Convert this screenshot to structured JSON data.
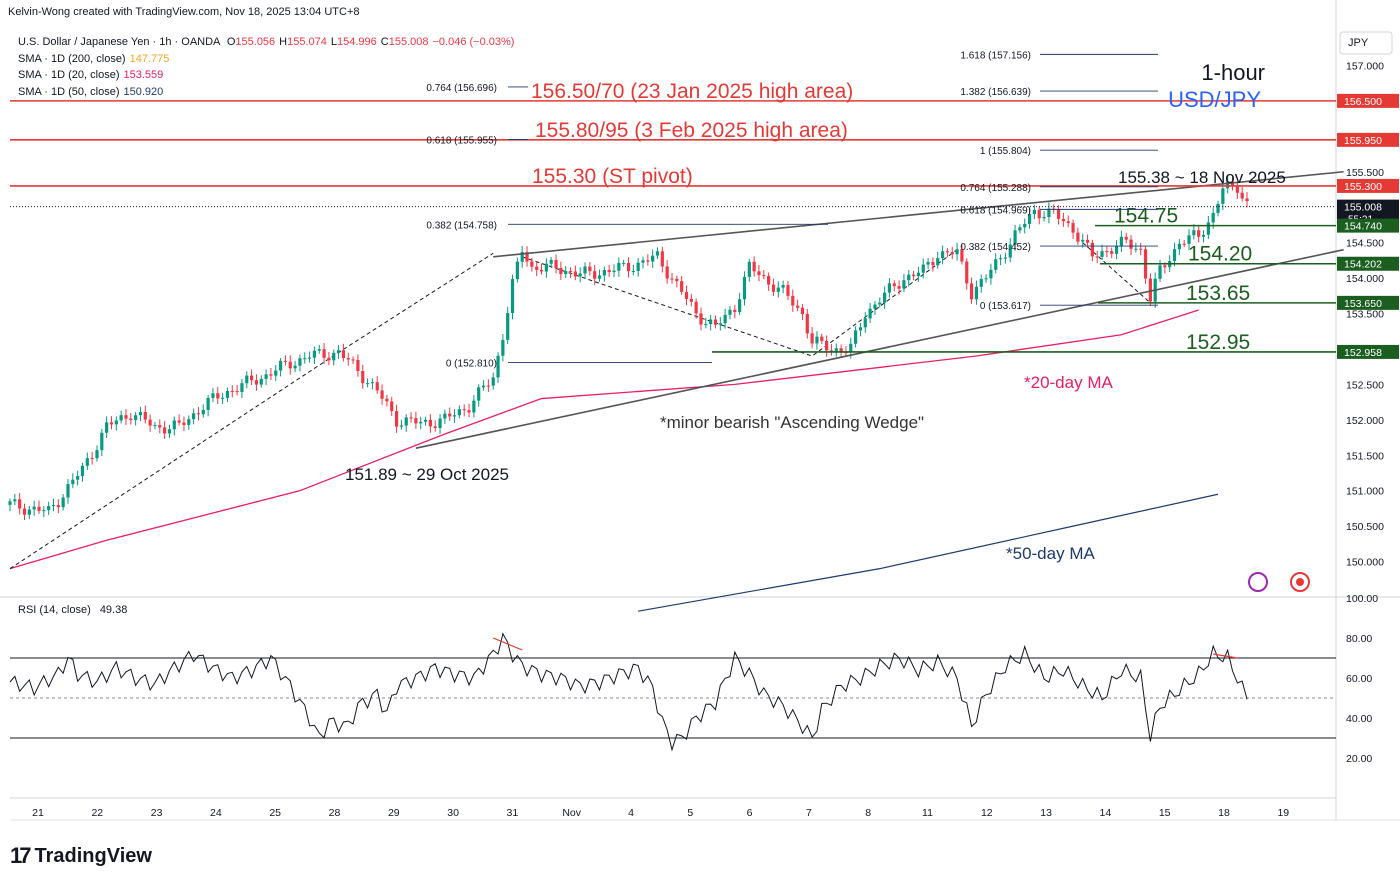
{
  "credit": "Kelvin-Wong created with TradingView.com, Nov 18, 2025 13:04 UTC+8",
  "header": {
    "symbol": "U.S. Dollar / Japanese Yen · 1h · OANDA",
    "ohlc": [
      {
        "k": "O",
        "v": "155.056"
      },
      {
        "k": "H",
        "v": "155.074"
      },
      {
        "k": "L",
        "v": "154.996"
      },
      {
        "k": "C",
        "v": "155.008"
      },
      {
        "k": "",
        "v": "−0.046 (−0.03%)"
      }
    ],
    "sma": [
      {
        "label": "SMA · 1D (200, close)",
        "value": "147.775",
        "color": "#f5a623"
      },
      {
        "label": "SMA · 1D (20, close)",
        "value": "153.559",
        "color": "#e91e63"
      },
      {
        "label": "SMA · 1D (50, close)",
        "value": "150.920",
        "color": "#1e3a6e"
      }
    ]
  },
  "title": {
    "line1": "1-hour",
    "line2": "USD/JPY",
    "line2_color": "#2962ff"
  },
  "currency": "JPY",
  "brand": "TradingView",
  "price_axis": {
    "min": 149.5,
    "max": 157.5,
    "ticks": [
      "157.000",
      "156.500",
      "156.000",
      "155.500",
      "155.000",
      "154.500",
      "154.000",
      "153.500",
      "153.000",
      "152.500",
      "152.000",
      "151.500",
      "151.000",
      "150.500",
      "150.000"
    ],
    "tick_values": [
      157.0,
      156.5,
      156.0,
      155.5,
      155.0,
      154.5,
      154.0,
      153.5,
      153.0,
      152.5,
      152.0,
      151.5,
      151.0,
      150.5,
      150.0
    ]
  },
  "time_axis": {
    "labels": [
      "21",
      "22",
      "23",
      "24",
      "25",
      "28",
      "29",
      "30",
      "31",
      "Nov",
      "4",
      "5",
      "6",
      "7",
      "8",
      "11",
      "12",
      "13",
      "14",
      "15",
      "18",
      "19"
    ]
  },
  "price_badges": [
    {
      "text": "156.500",
      "value": 156.5,
      "color": "#e53935"
    },
    {
      "text": "155.950",
      "value": 155.95,
      "color": "#e53935"
    },
    {
      "text": "155.300",
      "value": 155.3,
      "color": "#e53935"
    },
    {
      "text": "155.008",
      "sub": "55:21",
      "value": 155.008,
      "color": "#131722"
    },
    {
      "text": "154.740",
      "value": 154.74,
      "color": "#1b5e20"
    },
    {
      "text": "154.202",
      "value": 154.202,
      "color": "#1b5e20"
    },
    {
      "text": "153.650",
      "value": 153.65,
      "color": "#1b5e20"
    },
    {
      "text": "152.958",
      "value": 152.958,
      "color": "#1b5e20"
    }
  ],
  "resistance_lines": [
    {
      "label": "156.50/70 (23 Jan 2025 high area)",
      "value": 156.5
    },
    {
      "label": "155.80/95 (3 Feb 2025 high area)",
      "value": 155.95
    },
    {
      "label": "155.30 (ST pivot)",
      "value": 155.3
    }
  ],
  "support_lines": [
    {
      "label": "154.75",
      "value": 154.74
    },
    {
      "label": "154.20",
      "value": 154.202
    },
    {
      "label": "153.65",
      "value": 153.65
    },
    {
      "label": "152.95",
      "value": 152.958
    }
  ],
  "fib_left": [
    {
      "label": "0.764 (156.696)",
      "value": 156.696
    },
    {
      "label": "0.618 (155.955)",
      "value": 155.955
    },
    {
      "label": "0.382 (154.758)",
      "value": 154.758
    },
    {
      "label": "0 (152.810)",
      "value": 152.81
    }
  ],
  "fib_right": [
    {
      "label": "1.618 (157.156)",
      "value": 157.156
    },
    {
      "label": "1.382 (156.639)",
      "value": 156.639
    },
    {
      "label": "1 (155.804)",
      "value": 155.804
    },
    {
      "label": "0.764 (155.288)",
      "value": 155.288
    },
    {
      "label": "0.618 (154.969)",
      "value": 154.969
    },
    {
      "label": "0.382 (154.452)",
      "value": 154.452
    },
    {
      "label": "0 (153.617)",
      "value": 153.617
    }
  ],
  "annotations": {
    "high": "155.38 ~ 18 Nov 2025",
    "low": "151.89 ~ 29 Oct 2025",
    "wedge": "*minor bearish \"Ascending Wedge\"",
    "ma20": "*20-day MA",
    "ma50": "*50-day MA"
  },
  "colors": {
    "resistance": "#e53935",
    "support": "#1b5e20",
    "ma20": "#e91e63",
    "ma50": "#1e3a6e",
    "bull": "#089981",
    "bear": "#f23645"
  },
  "price_path": [
    [
      0,
      150.8
    ],
    [
      8,
      150.7
    ],
    [
      15,
      151.3
    ],
    [
      20,
      151.9
    ],
    [
      25,
      152.1
    ],
    [
      30,
      151.9
    ],
    [
      35,
      151.9
    ],
    [
      40,
      152.2
    ],
    [
      45,
      152.4
    ],
    [
      52,
      152.6
    ],
    [
      58,
      152.8
    ],
    [
      62,
      152.9
    ],
    [
      68,
      152.95
    ],
    [
      72,
      152.7
    ],
    [
      76,
      152.4
    ],
    [
      80,
      152.0
    ],
    [
      85,
      151.95
    ],
    [
      90,
      152.0
    ],
    [
      95,
      152.2
    ],
    [
      100,
      152.6
    ],
    [
      102,
      153.2
    ],
    [
      104,
      153.9
    ],
    [
      106,
      154.4
    ],
    [
      108,
      154.15
    ],
    [
      113,
      154.15
    ],
    [
      118,
      154.05
    ],
    [
      124,
      154.1
    ],
    [
      130,
      154.2
    ],
    [
      134,
      154.3
    ],
    [
      138,
      153.9
    ],
    [
      142,
      153.5
    ],
    [
      146,
      153.3
    ],
    [
      150,
      153.6
    ],
    [
      153,
      154.15
    ],
    [
      156,
      154.0
    ],
    [
      160,
      153.8
    ],
    [
      164,
      153.5
    ],
    [
      166,
      153.1
    ],
    [
      170,
      153.0
    ],
    [
      174,
      153.0
    ],
    [
      177,
      153.5
    ],
    [
      180,
      153.7
    ],
    [
      185,
      154.0
    ],
    [
      189,
      154.1
    ],
    [
      192,
      154.35
    ],
    [
      196,
      154.35
    ],
    [
      199,
      153.8
    ],
    [
      202,
      154.0
    ],
    [
      208,
      154.6
    ],
    [
      212,
      154.95
    ],
    [
      216,
      154.9
    ],
    [
      220,
      154.7
    ],
    [
      224,
      154.3
    ],
    [
      227,
      154.4
    ],
    [
      231,
      154.5
    ],
    [
      234,
      154.4
    ],
    [
      236,
      153.7
    ],
    [
      238,
      154.1
    ],
    [
      242,
      154.5
    ],
    [
      246,
      154.6
    ],
    [
      249,
      154.9
    ],
    [
      251,
      155.25
    ],
    [
      254,
      155.3
    ],
    [
      256,
      155.05
    ]
  ],
  "ma20_path": [
    [
      0,
      149.9
    ],
    [
      20,
      150.3
    ],
    [
      60,
      151.0
    ],
    [
      90,
      151.8
    ],
    [
      110,
      152.3
    ],
    [
      150,
      152.5
    ],
    [
      200,
      152.9
    ],
    [
      230,
      153.2
    ],
    [
      246,
      153.55
    ]
  ],
  "ma50_path": [
    [
      130,
      149.3
    ],
    [
      180,
      149.9
    ],
    [
      220,
      150.5
    ],
    [
      250,
      150.95
    ]
  ],
  "wedge_upper": [
    [
      100,
      154.3
    ],
    [
      276,
      155.5
    ]
  ],
  "wedge_lower": [
    [
      84,
      151.6
    ],
    [
      276,
      154.4
    ]
  ],
  "rsi": {
    "label": "RSI (14, close)",
    "value": "49.38",
    "ticks": [
      "100.00",
      "80.00",
      "60.00",
      "40.00",
      "20.00"
    ],
    "tick_values": [
      100,
      80,
      60,
      40,
      20
    ],
    "upper": 70,
    "lower": 30,
    "mid": 50,
    "series": [
      [
        0,
        58
      ],
      [
        5,
        55
      ],
      [
        10,
        62
      ],
      [
        12,
        70
      ],
      [
        14,
        62
      ],
      [
        18,
        58
      ],
      [
        22,
        65
      ],
      [
        26,
        60
      ],
      [
        30,
        57
      ],
      [
        34,
        65
      ],
      [
        38,
        72
      ],
      [
        42,
        65
      ],
      [
        46,
        60
      ],
      [
        50,
        64
      ],
      [
        54,
        70
      ],
      [
        58,
        56
      ],
      [
        60,
        48
      ],
      [
        62,
        40
      ],
      [
        64,
        30
      ],
      [
        66,
        38
      ],
      [
        70,
        36
      ],
      [
        72,
        46
      ],
      [
        76,
        52
      ],
      [
        78,
        42
      ],
      [
        80,
        56
      ],
      [
        84,
        60
      ],
      [
        88,
        65
      ],
      [
        92,
        62
      ],
      [
        96,
        60
      ],
      [
        100,
        72
      ],
      [
        102,
        80
      ],
      [
        104,
        72
      ],
      [
        106,
        66
      ],
      [
        110,
        62
      ],
      [
        114,
        60
      ],
      [
        118,
        56
      ],
      [
        122,
        58
      ],
      [
        126,
        62
      ],
      [
        130,
        65
      ],
      [
        133,
        55
      ],
      [
        135,
        38
      ],
      [
        137,
        28
      ],
      [
        139,
        30
      ],
      [
        142,
        40
      ],
      [
        146,
        48
      ],
      [
        150,
        70
      ],
      [
        153,
        62
      ],
      [
        156,
        52
      ],
      [
        160,
        46
      ],
      [
        164,
        36
      ],
      [
        166,
        30
      ],
      [
        168,
        44
      ],
      [
        172,
        56
      ],
      [
        176,
        60
      ],
      [
        180,
        66
      ],
      [
        184,
        70
      ],
      [
        188,
        64
      ],
      [
        192,
        68
      ],
      [
        196,
        60
      ],
      [
        199,
        36
      ],
      [
        202,
        52
      ],
      [
        206,
        66
      ],
      [
        210,
        72
      ],
      [
        214,
        60
      ],
      [
        218,
        64
      ],
      [
        222,
        56
      ],
      [
        226,
        50
      ],
      [
        230,
        64
      ],
      [
        234,
        60
      ],
      [
        236,
        31
      ],
      [
        238,
        46
      ],
      [
        242,
        54
      ],
      [
        246,
        62
      ],
      [
        249,
        72
      ],
      [
        252,
        70
      ],
      [
        254,
        60
      ],
      [
        256,
        49
      ]
    ]
  }
}
